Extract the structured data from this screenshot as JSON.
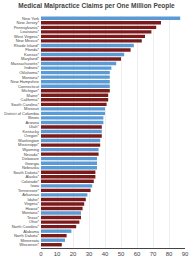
{
  "chart_data": {
    "type": "bar",
    "orientation": "horizontal",
    "title": "Medical Malpractice Claims per One Million People",
    "categories": [
      "New York",
      "New Jersey*",
      "Pennsylvania*",
      "Louisiana*",
      "West Virginia*",
      "New Mexico*",
      "Rhode Island*",
      "Florida*",
      "Kansas*",
      "Maryland*",
      "Massachusetts*",
      "Indiana*",
      "Oklahoma*",
      "Montana*",
      "New Hampshire",
      "Connecticut",
      "Michigan*",
      "Maine*",
      "California*",
      "South Carolina*",
      "Missouri",
      "District of Columbia",
      "Illinois",
      "Arizona",
      "Utah*",
      "Kentucky",
      "Oregon*",
      "Washington",
      "Mississippi*",
      "Wyoming",
      "Nevada*",
      "Delaware",
      "Georgia",
      "Nebraska",
      "South Dakota*",
      "Alaska*",
      "Colorado*",
      "Iowa",
      "Tennessee*",
      "Arkansas",
      "Idaho*",
      "Virginia*",
      "Hawaii*",
      "Montana*",
      "Texas*",
      "Ohio*",
      "North Carolina*",
      "Alabama",
      "North Dakota*",
      "Minnesota",
      "Wisconsin*"
    ],
    "values": [
      87,
      75,
      72,
      69,
      65,
      63,
      58,
      56,
      52,
      50,
      47,
      44,
      43,
      43,
      43,
      43,
      43,
      42,
      42,
      41,
      40,
      40,
      39,
      39,
      38,
      38,
      38,
      37,
      37,
      36,
      36,
      35,
      35,
      35,
      34,
      34,
      33,
      32,
      31,
      29,
      28,
      27,
      26,
      25,
      25,
      24,
      22,
      19,
      16,
      15,
      13
    ],
    "colors": [
      "#5B9BD5",
      "#7B1A1A",
      "#7B1A1A",
      "#7B1A1A",
      "#7B1A1A",
      "#7B1A1A",
      "#5B9BD5",
      "#7B1A1A",
      "#5B9BD5",
      "#7B1A1A",
      "#5B9BD5",
      "#5B9BD5",
      "#5B9BD5",
      "#5B9BD5",
      "#5B9BD5",
      "#5B9BD5",
      "#7B1A1A",
      "#7B1A1A",
      "#7B1A1A",
      "#7B1A1A",
      "#5B9BD5",
      "#5B9BD5",
      "#5B9BD5",
      "#5B9BD5",
      "#7B1A1A",
      "#5B9BD5",
      "#7B1A1A",
      "#5B9BD5",
      "#7B1A1A",
      "#5B9BD5",
      "#7B1A1A",
      "#5B9BD5",
      "#5B9BD5",
      "#5B9BD5",
      "#7B1A1A",
      "#7B1A1A",
      "#7B1A1A",
      "#5B9BD5",
      "#7B1A1A",
      "#5B9BD5",
      "#7B1A1A",
      "#7B1A1A",
      "#7B1A1A",
      "#5B9BD5",
      "#7B1A1A",
      "#7B1A1A",
      "#7B1A1A",
      "#5B9BD5",
      "#7B1A1A",
      "#5B9BD5",
      "#7B1A1A"
    ],
    "xlim": [
      0,
      90
    ],
    "xticks": [
      0,
      10,
      20,
      30,
      40,
      50,
      60,
      70,
      80,
      90
    ],
    "grid": true
  }
}
